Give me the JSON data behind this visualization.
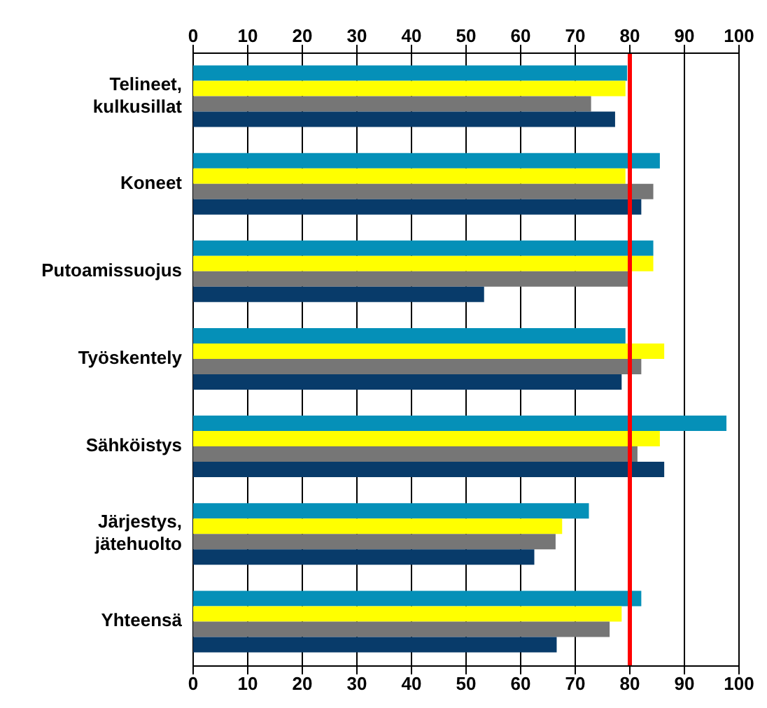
{
  "chart_data": {
    "type": "bar",
    "orientation": "horizontal",
    "categories": [
      "Telineet,\nkulkusillat",
      "Koneet",
      "Putoamissuojus",
      "Työskentely",
      "Sähköistys",
      "Järjestys,\njätehuolto",
      "Yhteensä"
    ],
    "series": [
      {
        "color": "#0590b8",
        "values": [
          79.5,
          85.5,
          84.3,
          79.2,
          97.7,
          72.5,
          82.1
        ]
      },
      {
        "color": "#ffff00",
        "values": [
          79.2,
          79.2,
          84.3,
          86.3,
          85.5,
          67.6,
          78.5
        ]
      },
      {
        "color": "#767676",
        "values": [
          72.9,
          84.3,
          80.0,
          82.1,
          81.4,
          66.4,
          76.3
        ]
      },
      {
        "color": "#083b6a",
        "values": [
          77.3,
          82.1,
          53.3,
          78.5,
          86.3,
          62.5,
          66.6
        ]
      }
    ],
    "xlim": [
      0,
      100
    ],
    "xticks": [
      0,
      10,
      20,
      30,
      40,
      50,
      60,
      70,
      80,
      90,
      100
    ],
    "x2lim": [
      0,
      100
    ],
    "x2ticks": [
      0,
      10,
      20,
      30,
      40,
      50,
      60,
      70,
      80,
      90,
      100
    ],
    "grid": "x",
    "legend": false,
    "ref_lines": [
      {
        "axis": "x",
        "value": 80,
        "color": "#ff0000"
      }
    ]
  }
}
